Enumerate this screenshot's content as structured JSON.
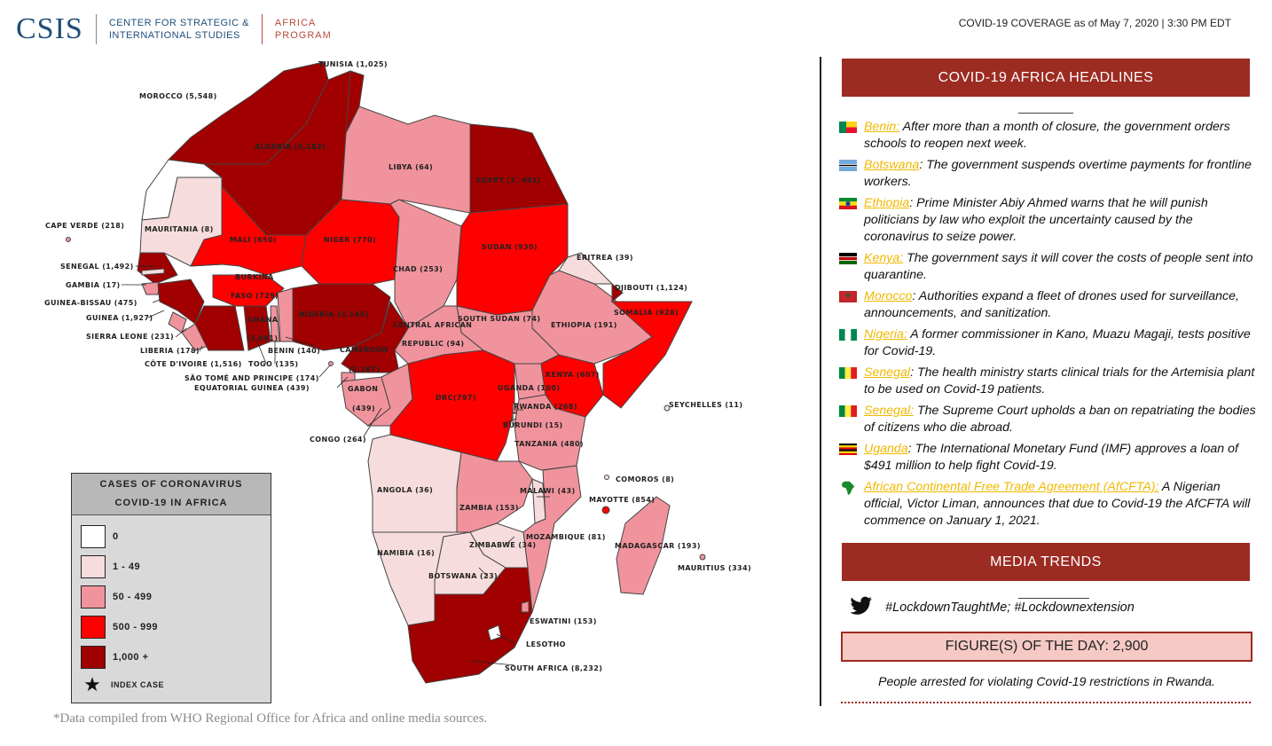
{
  "header": {
    "logo_text": "CSIS",
    "org_line1": "CENTER FOR STRATEGIC &",
    "org_line2": "INTERNATIONAL STUDIES",
    "program_line1": "AFRICA",
    "program_line2": "PROGRAM",
    "coverage": "COVID-19 COVERAGE as of May 7, 2020 | 3:30 PM EDT"
  },
  "map": {
    "colors": {
      "none": "#ffffff",
      "low": "#f6dcdc",
      "mid": "#f0939c",
      "high": "#ff0000",
      "very_high": "#a00000"
    },
    "labels": {
      "tunisia": "TUNISIA (1,025)",
      "morocco": "MOROCCO (5,548)",
      "algeria": "ALGERIA (5,182)",
      "libya": "LIBYA (64)",
      "egypt": "EGYPT (7, 981)",
      "mauritania": "MAURITANIA (8)",
      "cape_verde": "CAPE VERDE (218)",
      "mali": "MALI (650)",
      "niger": "NIGER (770)",
      "chad": "CHAD (253)",
      "sudan": "SUDAN (930)",
      "eritrea": "ERITREA (39)",
      "djibouti": "DJIBOUTI (1,124)",
      "somalia": "SOMALIA (928)",
      "ethiopia": "ETHIOPIA (191)",
      "south_sudan": "SOUTH SUDAN (74)",
      "senegal": "SENEGAL (1,492)",
      "gambia": "GAMBIA (17)",
      "guinea_bissau": "GUINEA-BISSAU (475)",
      "guinea": "GUINEA (1,927)",
      "sierra_leone": "SIERRA LEONE (231)",
      "liberia": "LIBERIA (178)",
      "cote_divoire": "CÔTE D'IVOIRE (1,516)",
      "togo": "TOGO (135)",
      "sao_tome": "SÃO TOMÉ AND PRINCIPE (174)",
      "eq_guinea": "EQUATORIAL GUINEA (439)",
      "burkina_1": "BURKINA",
      "burkina_2": "FASO (729)",
      "ghana_1": "GHANA",
      "ghana_2": "(3,091)",
      "benin": "BENIN (140)",
      "nigeria": "NIGERIA (3,145)",
      "cameroon_1": "CAMEROON",
      "cameroon_2": "(2,267)",
      "car_1": "CENTRAL AFRICAN",
      "car_2": "REPUBLIC (94)",
      "gabon_1": "GABON",
      "gabon_2": "(439)",
      "congo": "CONGO (264)",
      "drc": "DRC(797)",
      "uganda": "UGANDA (100)",
      "kenya": "KENYA (607)",
      "rwanda": "RWANDA (268)",
      "burundi": "BURUNDI (15)",
      "tanzania": "TANZANIA (480)",
      "seychelles": "SEYCHELLES (11)",
      "comoros": "COMOROS (8)",
      "mayotte": "MAYOTTE (854)",
      "angola": "ANGOLA (36)",
      "zambia": "ZAMBIA (153)",
      "malawi": "MALAWI (43)",
      "mozambique": "MOZAMBIQUE (81)",
      "zimbabwe": "ZIMBABWE (34)",
      "madagascar": "MADAGASCAR (193)",
      "mauritius": "MAURITIUS (334)",
      "namibia": "NAMIBIA (16)",
      "botswana": "BOTSWANA (23)",
      "eswatini": "ESWATINI (153)",
      "lesotho": "LESOTHO",
      "south_africa": "SOUTH AFRICA (8,232)"
    }
  },
  "legend": {
    "title_line1": "CASES OF CORONAVIRUS",
    "title_line2": "COVID-19 IN AFRICA",
    "items": [
      {
        "label": "0",
        "color": "#ffffff"
      },
      {
        "label": "1 - 49",
        "color": "#f6dcdc"
      },
      {
        "label": "50 - 499",
        "color": "#f0939c"
      },
      {
        "label": "500 - 999",
        "color": "#ff0000"
      },
      {
        "label": "1,000 +",
        "color": "#a00000"
      }
    ],
    "index_case": "INDEX CASE"
  },
  "footnote": "*Data compiled from WHO Regional Office for Africa and online media sources.",
  "sidebar": {
    "headlines_title": "COVID-19 AFRICA HEADLINES",
    "headlines": [
      {
        "country": "Benin:",
        "text": " After more than a month of closure, the government orders schools to reopen next week.",
        "flag": "benin-flag-icon"
      },
      {
        "country": "Botswana",
        "text": ": The government suspends overtime payments for frontline workers.",
        "flag": "botswana-flag-icon"
      },
      {
        "country": "Ethiopia",
        "text": ": Prime Minister Abiy Ahmed warns that he will punish politicians by law who exploit the uncertainty caused by the coronavirus to seize power.",
        "flag": "ethiopia-flag-icon"
      },
      {
        "country": "Kenya:",
        "text": " The government says it will cover the costs of people sent into quarantine.",
        "flag": "kenya-flag-icon"
      },
      {
        "country": "Morocco",
        "text": ": Authorities expand a fleet of drones used for surveillance, announcements, and sanitization.",
        "flag": "morocco-flag-icon"
      },
      {
        "country": "Nigeria:",
        "text": " A former commissioner in Kano, Muazu Magaji, tests positive for Covid-19.",
        "flag": "nigeria-flag-icon"
      },
      {
        "country": "Senegal",
        "text": ": The health ministry starts clinical trials for the Artemisia plant to be used on Covid-19 patients.",
        "flag": "senegal-flag-icon"
      },
      {
        "country": "Senegal:",
        "text": " The Supreme Court upholds a ban on repatriating the bodies of citizens who die abroad.",
        "flag": "senegal-flag-icon"
      },
      {
        "country": "Uganda",
        "text": ": The International Monetary Fund (IMF) approves a loan of $491 million to help fight Covid-19.",
        "flag": "uganda-flag-icon"
      },
      {
        "country": "African Continental Free Trade Agreement (AfCFTA):",
        "text": " A Nigerian official, Victor Liman, announces that due to Covid-19 the AfCFTA will commence on January 1, 2021.",
        "flag": "africa-map-icon"
      }
    ],
    "media_title": "MEDIA TRENDS",
    "hashtags": "#LockdownTaughtMe; #Lockdownextension",
    "figure_title": "FIGURE(S) OF THE DAY: 2,900",
    "figure_note": "People arrested for violating Covid-19 restrictions in Rwanda."
  }
}
